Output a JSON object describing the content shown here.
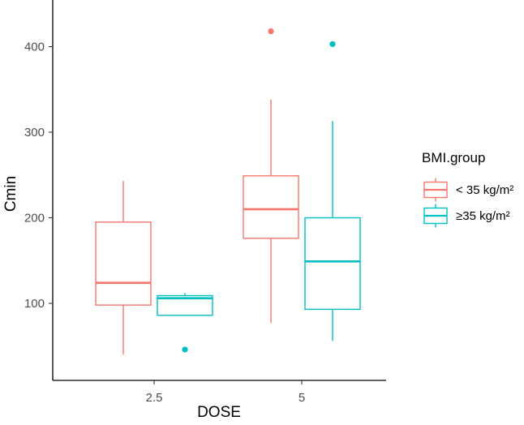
{
  "chart_data": {
    "type": "boxplot",
    "title": "",
    "xlabel": "DOSE",
    "ylabel": "Cmin",
    "ylim": [
      20,
      435
    ],
    "y_ticks": [
      100,
      200,
      300,
      400
    ],
    "categories": [
      "2.5",
      "5"
    ],
    "grid": false,
    "legend": {
      "title": "BMI.group",
      "placement": "right"
    },
    "series": [
      {
        "name": "< 35 kg/m²",
        "color": "#F8766D",
        "boxes": [
          {
            "category": "2.5",
            "whisker_low": 40,
            "q1": 98,
            "median": 124,
            "q3": 195,
            "whisker_high": 243,
            "outliers": []
          },
          {
            "category": "5",
            "whisker_low": 77,
            "q1": 176,
            "median": 210,
            "q3": 249,
            "whisker_high": 338,
            "outliers": [
              418
            ]
          }
        ]
      },
      {
        "name": "≥35 kg/m²",
        "color": "#00BFC4",
        "boxes": [
          {
            "category": "2.5",
            "whisker_low": 86,
            "q1": 86,
            "median": 106,
            "q3": 109,
            "whisker_high": 112,
            "outliers": [
              46
            ]
          },
          {
            "category": "5",
            "whisker_low": 56,
            "q1": 93,
            "median": 149,
            "q3": 200,
            "whisker_high": 313,
            "outliers": [
              403
            ]
          }
        ]
      }
    ]
  }
}
